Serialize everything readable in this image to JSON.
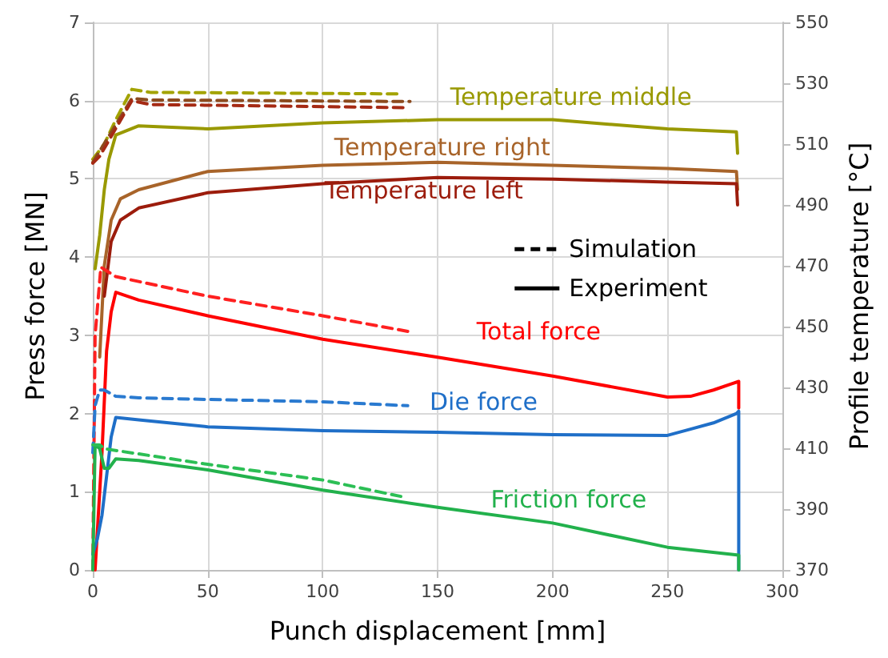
{
  "chart_data": {
    "type": "line",
    "xlabel": "Punch displacement [mm]",
    "ylabel": "Press force [MN]",
    "y2label": "Profile temperature [°C]",
    "xlim": [
      0,
      300
    ],
    "xticks": [
      0,
      50,
      100,
      150,
      200,
      250,
      300
    ],
    "ylim": [
      0,
      7
    ],
    "yticks": [
      0,
      1,
      2,
      3,
      4,
      5,
      6,
      7
    ],
    "y2lim": [
      370,
      550
    ],
    "y2ticks": [
      370,
      390,
      410,
      430,
      450,
      470,
      490,
      510,
      530,
      550
    ],
    "grid": true,
    "marker": "none",
    "annotations": [
      "Simulation",
      "Experiment"
    ],
    "series": [
      {
        "name": "Temperature middle",
        "color": "#999900",
        "axis": "y2",
        "line_style": "solid",
        "x": [
          1,
          3,
          5,
          7,
          10,
          20,
          50,
          100,
          150,
          200,
          250,
          280,
          280.5
        ],
        "values": [
          469,
          480,
          495,
          505,
          513,
          516,
          515,
          517,
          518,
          518,
          515,
          514,
          507
        ]
      },
      {
        "color": "#a3a300",
        "axis": "y2",
        "line_style": "dashed",
        "x": [
          0,
          5,
          10,
          17,
          25,
          135
        ],
        "values": [
          505,
          510,
          518,
          528,
          527,
          526.5
        ]
      },
      {
        "name": "Temperature right",
        "color": "#a8642a",
        "axis": "y2",
        "line_style": "solid",
        "x": [
          3,
          5,
          8,
          12,
          20,
          50,
          100,
          150,
          200,
          250,
          280,
          280.5
        ],
        "values": [
          440,
          470,
          485,
          492,
          495,
          501,
          503,
          504,
          503,
          502,
          501,
          495
        ]
      },
      {
        "color": "#8c4a1e",
        "axis": "y2",
        "line_style": "dashed",
        "x": [
          0,
          17,
          25,
          138
        ],
        "values": [
          504,
          525,
          524.5,
          524
        ]
      },
      {
        "name": "Temperature left",
        "color": "#9c1c0c",
        "axis": "y2",
        "line_style": "solid",
        "x": [
          5,
          8,
          12,
          20,
          50,
          100,
          150,
          200,
          250,
          280,
          280.5
        ],
        "values": [
          460,
          478,
          485,
          489,
          494,
          497,
          499,
          498.5,
          497.5,
          497,
          490
        ]
      },
      {
        "color": "#a52a14",
        "axis": "y2",
        "line_style": "dashed",
        "x": [
          0,
          3,
          17,
          25,
          135
        ],
        "values": [
          503.7,
          506,
          524.3,
          523,
          522
        ]
      },
      {
        "name": "Total force",
        "color": "#ff0000",
        "line_style": "solid",
        "x": [
          1,
          4,
          6,
          8,
          10,
          20,
          50,
          100,
          150,
          200,
          250,
          260,
          270,
          278,
          281,
          281
        ],
        "values": [
          0,
          1.5,
          2.8,
          3.3,
          3.55,
          3.45,
          3.25,
          2.95,
          2.72,
          2.48,
          2.21,
          2.22,
          2.3,
          2.38,
          2.41,
          2.07
        ]
      },
      {
        "color": "#ff2020",
        "line_style": "dashed",
        "x": [
          0,
          1,
          3.5,
          10,
          50,
          100,
          137
        ],
        "values": [
          0,
          3.0,
          3.87,
          3.75,
          3.5,
          3.25,
          3.05
        ]
      },
      {
        "name": "Die force",
        "color": "#1f6fc8",
        "line_style": "solid",
        "x": [
          0,
          2,
          4,
          6,
          8,
          10,
          20,
          50,
          100,
          150,
          200,
          250,
          260,
          270,
          280,
          281,
          281
        ],
        "values": [
          0.2,
          0.4,
          0.7,
          1.2,
          1.7,
          1.95,
          1.92,
          1.83,
          1.78,
          1.76,
          1.73,
          1.72,
          1.8,
          1.88,
          2.0,
          2.03,
          0
        ]
      },
      {
        "color": "#2a7ad0",
        "line_style": "dashed",
        "x": [
          0,
          1,
          3,
          5,
          10,
          20,
          50,
          100,
          137
        ],
        "values": [
          1.5,
          2.1,
          2.3,
          2.3,
          2.22,
          2.2,
          2.18,
          2.15,
          2.1
        ]
      },
      {
        "name": "Friction force",
        "color": "#22b14c",
        "line_style": "solid",
        "x": [
          0,
          1,
          3,
          5,
          7,
          10,
          20,
          50,
          100,
          150,
          200,
          250,
          281,
          281
        ],
        "values": [
          0,
          1.6,
          1.55,
          1.3,
          1.3,
          1.42,
          1.4,
          1.28,
          1.02,
          0.8,
          0.6,
          0.29,
          0.19,
          0
        ]
      },
      {
        "color": "#2cbf55",
        "line_style": "dashed",
        "x": [
          0,
          3,
          5,
          50,
          100,
          134
        ],
        "values": [
          1.6,
          1.6,
          1.55,
          1.35,
          1.15,
          0.94
        ]
      }
    ]
  }
}
